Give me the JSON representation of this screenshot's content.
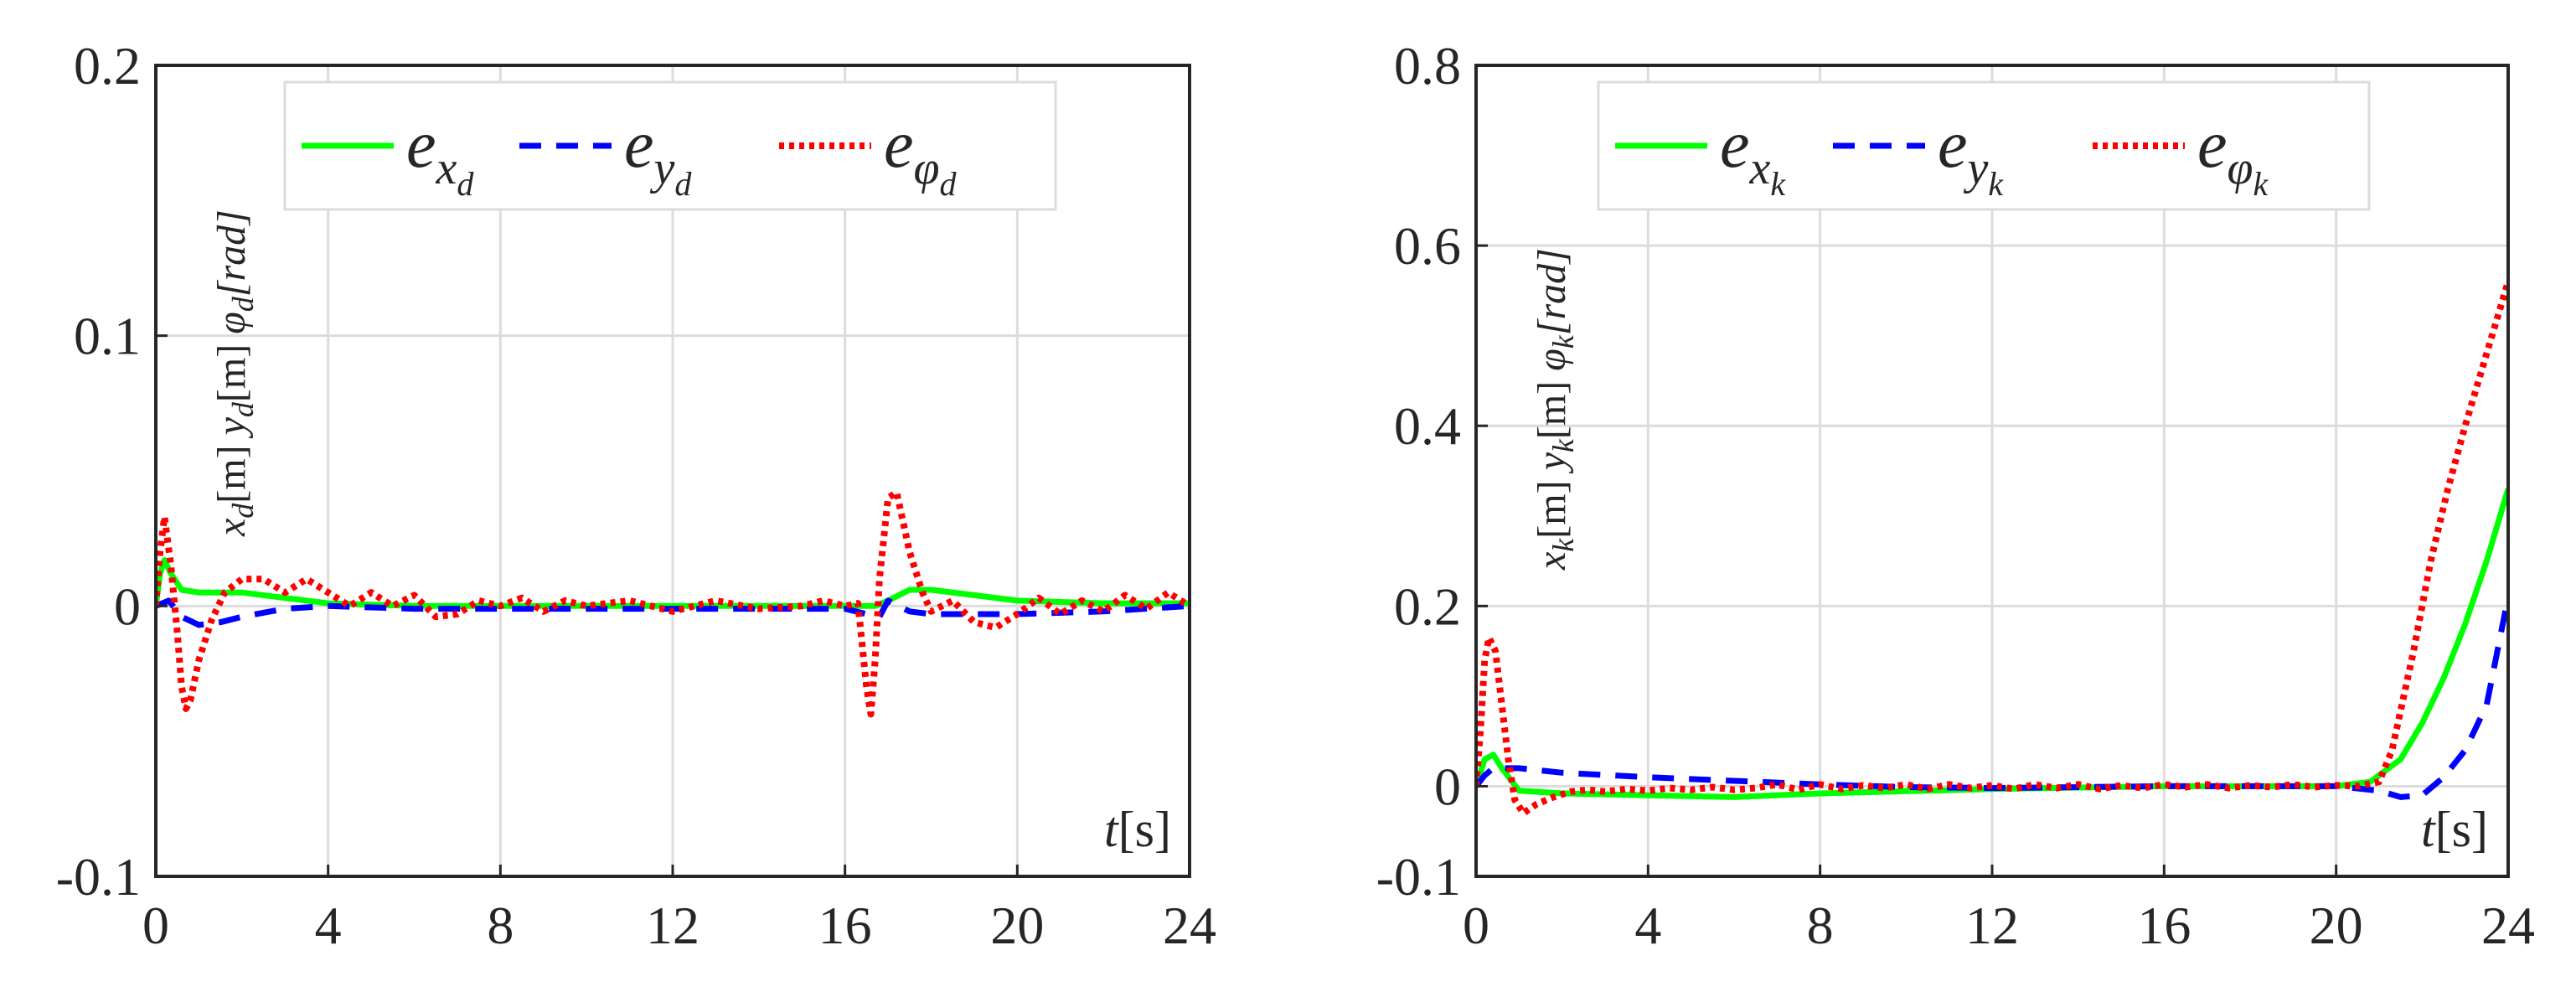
{
  "figure": {
    "background": "#ffffff",
    "axis_color": "#262626",
    "grid_color": "#dcdcdc"
  },
  "chart_data": [
    {
      "type": "line",
      "xlim": [
        0,
        24
      ],
      "ylim": [
        -0.1,
        0.2
      ],
      "x_ticks": [
        0,
        4,
        8,
        12,
        16,
        20,
        24
      ],
      "x_tick_labels": [
        "0",
        "4",
        "8",
        "12",
        "16",
        "20",
        "24"
      ],
      "y_ticks": [
        -0.1,
        0,
        0.1,
        0.2
      ],
      "y_tick_labels": [
        "-0.1",
        "0",
        "0.1",
        "0.2"
      ],
      "grid": true,
      "xlabel": {
        "var": "t",
        "unit": "[s]"
      },
      "ylabel": {
        "x": "x",
        "y": "y",
        "phi": "φ",
        "sub": "d",
        "unit_m": "[m]",
        "unit_rad": "[rad]"
      },
      "legend_position": "top",
      "series": [
        {
          "name": "e_{x_d}",
          "base": "e",
          "var": "x",
          "sub": "d",
          "color": "#00ff00",
          "dash": "solid",
          "x": [
            0,
            0.1,
            0.2,
            0.35,
            0.6,
            1,
            2,
            3,
            4,
            6,
            8,
            10,
            12,
            14,
            16,
            16.5,
            16.7,
            17,
            17.5,
            18,
            19,
            20,
            22,
            24
          ],
          "y": [
            0,
            0.012,
            0.017,
            0.012,
            0.006,
            0.005,
            0.005,
            0.003,
            0.001,
            0,
            0,
            0,
            0,
            0,
            0,
            0,
            0,
            0.002,
            0.006,
            0.006,
            0.004,
            0.002,
            0.001,
            0.001
          ]
        },
        {
          "name": "e_{y_d}",
          "base": "e",
          "var": "y",
          "sub": "d",
          "color": "#0000ff",
          "dash": "dashed",
          "x": [
            0,
            0.3,
            0.6,
            1,
            1.5,
            2,
            3,
            4,
            6,
            8,
            10,
            12,
            14,
            16,
            16.5,
            16.8,
            17,
            17.5,
            18,
            19,
            20,
            22,
            24
          ],
          "y": [
            0,
            0.002,
            -0.004,
            -0.007,
            -0.006,
            -0.004,
            -0.001,
            0,
            -0.001,
            -0.001,
            -0.001,
            -0.001,
            -0.001,
            -0.001,
            -0.003,
            -0.004,
            0.002,
            -0.002,
            -0.003,
            -0.003,
            -0.003,
            -0.002,
            0
          ]
        },
        {
          "name": "e_{φ_d}",
          "base": "e",
          "var": "φ",
          "sub": "d",
          "color": "#ff0000",
          "dash": "dotted",
          "x": [
            0,
            0.1,
            0.2,
            0.35,
            0.5,
            0.6,
            0.7,
            0.8,
            1,
            1.3,
            1.6,
            2,
            2.5,
            3,
            3.5,
            4,
            4.5,
            5,
            5.5,
            6,
            6.5,
            7,
            7.5,
            8,
            8.5,
            9,
            9.5,
            10,
            11,
            12,
            13,
            14,
            15,
            15.5,
            16,
            16.3,
            16.5,
            16.6,
            16.7,
            16.8,
            17,
            17.2,
            17.5,
            17.8,
            18,
            18.5,
            19,
            19.5,
            20,
            20.5,
            21,
            21.5,
            22,
            22.5,
            23,
            23.5,
            24
          ],
          "y": [
            0,
            0.02,
            0.033,
            0.015,
            -0.01,
            -0.03,
            -0.038,
            -0.035,
            -0.02,
            -0.005,
            0.005,
            0.01,
            0.01,
            0.005,
            0.01,
            0.005,
            0,
            0.005,
            0,
            0.004,
            -0.004,
            -0.003,
            0.002,
            0,
            0.003,
            -0.002,
            0.002,
            0,
            0.002,
            -0.002,
            0.002,
            -0.001,
            0,
            0.002,
            0,
            0.001,
            -0.03,
            -0.04,
            -0.02,
            0.01,
            0.04,
            0.042,
            0.02,
            0.005,
            -0.002,
            0.002,
            -0.006,
            -0.008,
            -0.003,
            0.003,
            -0.003,
            0.002,
            -0.002,
            0.004,
            -0.001,
            0.005,
            0
          ]
        }
      ]
    },
    {
      "type": "line",
      "xlim": [
        0,
        24
      ],
      "ylim": [
        -0.1,
        0.8
      ],
      "x_ticks": [
        0,
        4,
        8,
        12,
        16,
        20,
        24
      ],
      "x_tick_labels": [
        "0",
        "4",
        "8",
        "12",
        "16",
        "20",
        "24"
      ],
      "y_ticks": [
        -0.1,
        0,
        0.2,
        0.4,
        0.6,
        0.8
      ],
      "y_tick_labels": [
        "-0.1",
        "0",
        "0.2",
        "0.4",
        "0.6",
        "0.8"
      ],
      "grid": true,
      "xlabel": {
        "var": "t",
        "unit": "[s]"
      },
      "ylabel": {
        "x": "x",
        "y": "y",
        "phi": "φ",
        "sub": "k",
        "unit_m": "[m]",
        "unit_rad": "[rad]"
      },
      "legend_position": "top",
      "series": [
        {
          "name": "e_{x_k}",
          "base": "e",
          "var": "x",
          "sub": "k",
          "color": "#00ff00",
          "dash": "solid",
          "x": [
            0,
            0.2,
            0.4,
            0.6,
            1,
            2,
            4,
            6,
            8,
            12,
            16,
            20,
            20.8,
            21.5,
            22,
            22.5,
            23,
            23.5,
            24
          ],
          "y": [
            0,
            0.03,
            0.035,
            0.02,
            -0.005,
            -0.008,
            -0.01,
            -0.012,
            -0.008,
            -0.003,
            0,
            0,
            0.005,
            0.03,
            0.07,
            0.12,
            0.18,
            0.25,
            0.33
          ]
        },
        {
          "name": "e_{y_k}",
          "base": "e",
          "var": "y",
          "sub": "k",
          "color": "#0000ff",
          "dash": "dashed",
          "x": [
            0,
            0.2,
            0.4,
            0.7,
            1,
            2,
            4,
            6,
            8,
            10,
            12,
            16,
            20,
            21,
            21.5,
            22,
            22.5,
            23,
            23.5,
            24
          ],
          "y": [
            0,
            0.012,
            0.02,
            0.02,
            0.02,
            0.015,
            0.01,
            0.006,
            0.002,
            -0.001,
            -0.002,
            0,
            0,
            -0.005,
            -0.012,
            -0.01,
            0.01,
            0.04,
            0.09,
            0.21
          ]
        },
        {
          "name": "e_{φ_k}",
          "base": "e",
          "var": "φ",
          "sub": "k",
          "color": "#ff0000",
          "dash": "dotted",
          "x": [
            0,
            0.1,
            0.2,
            0.3,
            0.45,
            0.6,
            0.75,
            0.9,
            1.1,
            1.4,
            1.8,
            2.2,
            2.6,
            3,
            3.5,
            4,
            4.5,
            5,
            5.5,
            6,
            6.5,
            7,
            7.5,
            8,
            8.5,
            9,
            9.5,
            10,
            10.5,
            11,
            11.5,
            12,
            12.5,
            13,
            13.5,
            14,
            14.5,
            15,
            15.5,
            16,
            16.5,
            17,
            17.5,
            18,
            18.5,
            19,
            19.5,
            20,
            20.5,
            21,
            21.3,
            21.8,
            22.2,
            22.6,
            23,
            23.5,
            24
          ],
          "y": [
            0,
            0.06,
            0.14,
            0.165,
            0.15,
            0.09,
            0.03,
            -0.015,
            -0.03,
            -0.02,
            -0.012,
            -0.006,
            -0.004,
            -0.006,
            -0.003,
            -0.005,
            -0.002,
            -0.004,
            -0.001,
            -0.004,
            -0.002,
            0.002,
            -0.004,
            0.002,
            -0.003,
            0.001,
            -0.002,
            0.002,
            -0.003,
            0.002,
            -0.002,
            0.001,
            -0.003,
            0.002,
            -0.002,
            0.002,
            -0.003,
            0.001,
            -0.002,
            0.002,
            -0.001,
            0.002,
            -0.002,
            0.001,
            -0.001,
            0.002,
            -0.001,
            0.001,
            0,
            0.005,
            0.04,
            0.15,
            0.25,
            0.33,
            0.4,
            0.48,
            0.56
          ]
        }
      ]
    }
  ]
}
